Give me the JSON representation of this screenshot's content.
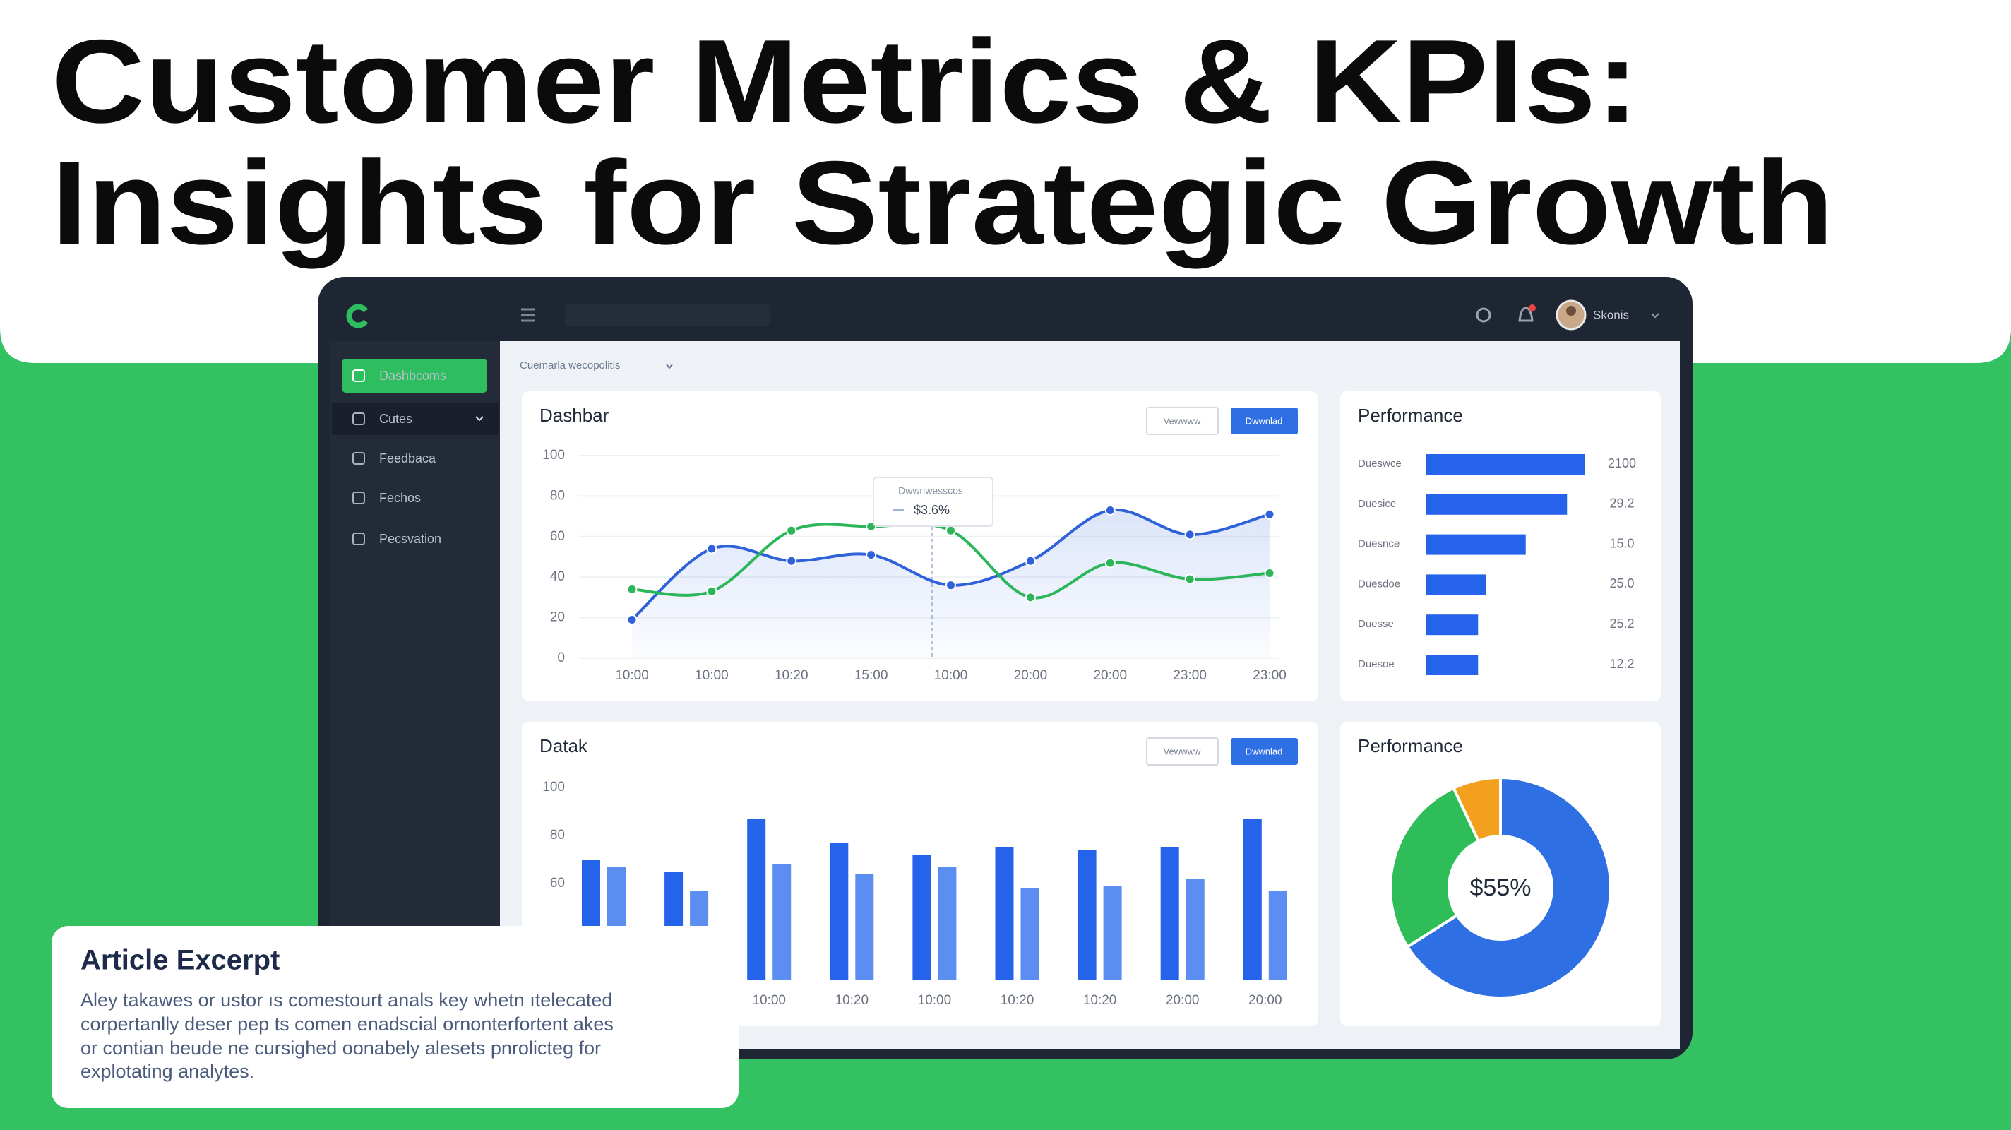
{
  "header": {
    "title_lines": [
      "Customer Metrics & KPIs:",
      "Insights for Strategic Growth"
    ]
  },
  "dashboard": {
    "breadcrumb": "Cuemarla wecopolitis",
    "user": "Skonis",
    "nav": [
      "Dashbcoms",
      "Cutes",
      "Feedbaca",
      "Fechos",
      "Pecsvation"
    ]
  },
  "chart_data": [
    {
      "type": "line",
      "title": "Dashbar",
      "buttons": [
        "Vewwww",
        "Dwwnlad"
      ],
      "categories": [
        "10:00",
        "10:00",
        "10:20",
        "15:00",
        "10:00",
        "20:00",
        "20:00",
        "23:00",
        "23:00"
      ],
      "series": [
        {
          "color": "#2f62d9",
          "values": [
            19,
            54,
            48,
            51,
            36,
            48,
            73,
            61,
            71
          ]
        },
        {
          "color": "#2bb65a",
          "values": [
            34,
            33,
            63,
            65,
            63,
            30,
            47,
            39,
            42
          ]
        }
      ],
      "ylim": [
        0,
        100
      ],
      "yticks": [
        0,
        20,
        40,
        60,
        80,
        100
      ],
      "grid": true,
      "tooltip": {
        "title": "Dwwnwesscos",
        "value": "$3.6%"
      }
    },
    {
      "type": "bar",
      "title": "Datak",
      "buttons": [
        "Vewwww",
        "Dwwnlad"
      ],
      "categories": [
        null,
        null,
        "10:00",
        "10:20",
        "10:00",
        "10:20",
        "10:20",
        "20:00",
        "20:00"
      ],
      "series": [
        {
          "color": "#2563eb",
          "values": [
            70,
            65,
            87,
            77,
            72,
            75,
            74,
            75,
            87
          ]
        },
        {
          "color": "#5b8ef0",
          "values": [
            67,
            57,
            68,
            64,
            67,
            58,
            59,
            62,
            57
          ]
        }
      ],
      "ylim": [
        20,
        100
      ],
      "yticks": [
        60,
        80,
        100
      ],
      "grid": false
    },
    {
      "type": "bar",
      "orientation": "horizontal",
      "title": "Performance",
      "categories": [
        "Dueswce",
        "Duesice",
        "Duesnce",
        "Duesdoe",
        "Duesse",
        "Duesoe"
      ],
      "values": [
        100,
        89,
        63,
        38,
        33,
        33
      ],
      "color": "#2563eb",
      "xlim": [
        0,
        100
      ],
      "annotations": [
        "2100",
        "29.2",
        "15.0",
        "25.0",
        "25.2",
        "12.2"
      ]
    },
    {
      "type": "pie",
      "title": "Performance",
      "values": [
        66,
        27,
        7
      ],
      "colors": [
        "#2f6fe4",
        "#2ebd59",
        "#f2a01d"
      ],
      "center_label": "$55%",
      "hole": true
    }
  ],
  "excerpt": {
    "title": "Article Excerpt",
    "lines": [
      "Aley takawes or ustor ıs comestourt anals key whetn ıtelecated",
      "corpertanlly deser pep ts comen enadscial ornonterfortent akes",
      "or contian beude ne cursighed oonabely alesets pnrolicteg for",
      "explotating analytes."
    ]
  }
}
